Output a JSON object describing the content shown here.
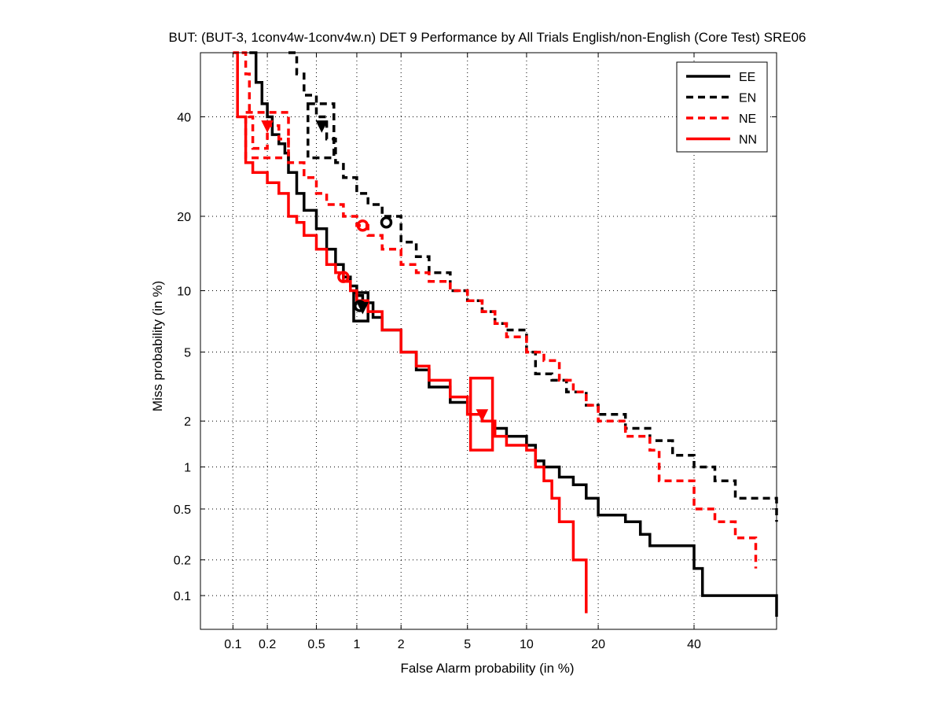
{
  "chart_data": {
    "type": "line",
    "title": "BUT: (BUT-3, 1conv4w-1conv4w.n) DET 9 Performance by All Trials English/non-English (Core Test) SRE06",
    "xlabel": "False Alarm probability (in %)",
    "ylabel": "Miss probability (in %)",
    "x_scale": "probit",
    "y_scale": "probit",
    "xlim": [
      0.05,
      60
    ],
    "ylim": [
      0.05,
      55
    ],
    "x_ticks": [
      0.1,
      0.2,
      0.5,
      1,
      2,
      5,
      10,
      20,
      40
    ],
    "x_tick_labels": [
      "0.1",
      "0.2",
      "0.5",
      "1",
      "2",
      "5",
      "10",
      "20",
      "40"
    ],
    "y_ticks": [
      0.1,
      0.2,
      0.5,
      1,
      2,
      5,
      10,
      20,
      40
    ],
    "y_tick_labels": [
      "0.1",
      "0.2",
      "0.5",
      "1",
      "2",
      "5",
      "10",
      "20",
      "40"
    ],
    "grid": true,
    "legend_position": "top-right",
    "series": [
      {
        "name": "EE",
        "color": "#000000",
        "dash": "solid",
        "x": [
          0.14,
          0.16,
          0.18,
          0.2,
          0.22,
          0.25,
          0.28,
          0.3,
          0.35,
          0.4,
          0.5,
          0.6,
          0.7,
          0.8,
          0.9,
          1.0,
          1.1,
          1.3,
          1.5,
          2.0,
          2.5,
          3.0,
          4.0,
          5.0,
          6.0,
          7.0,
          8.0,
          10.0,
          11.0,
          12.0,
          14.0,
          16.0,
          18.0,
          20.0,
          25.0,
          28.0,
          30.0,
          40.0,
          42.0,
          60.0
        ],
        "y": [
          55,
          48,
          43,
          40,
          36,
          34,
          32,
          28,
          24,
          21,
          18,
          15,
          13,
          11.5,
          10.5,
          9.5,
          8.8,
          7.5,
          6.5,
          5.0,
          4.0,
          3.2,
          2.6,
          2.2,
          2.0,
          1.8,
          1.6,
          1.4,
          1.1,
          1.0,
          0.85,
          0.75,
          0.6,
          0.45,
          0.4,
          0.32,
          0.26,
          0.17,
          0.1,
          0.065
        ]
      },
      {
        "name": "EN",
        "color": "#000000",
        "dash": "dashed",
        "x": [
          0.3,
          0.35,
          0.4,
          0.5,
          0.6,
          0.7,
          0.8,
          1.0,
          1.2,
          1.5,
          2.0,
          2.5,
          3.0,
          4.0,
          5.0,
          6.0,
          7.0,
          8.0,
          10.0,
          11.0,
          13.0,
          15.0,
          18.0,
          20.0,
          25.0,
          30.0,
          35.0,
          40.0,
          45.0,
          50.0,
          60.0
        ],
        "y": [
          55,
          50,
          45,
          40,
          35,
          30,
          27,
          24,
          22,
          20,
          16,
          14,
          12,
          10,
          9,
          8,
          7,
          6.5,
          5,
          3.8,
          3.5,
          3.0,
          2.5,
          2.2,
          1.8,
          1.5,
          1.2,
          1.0,
          0.8,
          0.6,
          0.4
        ]
      },
      {
        "name": "NE",
        "color": "#ff0000",
        "dash": "dashed",
        "x": [
          0.12,
          0.13,
          0.14,
          0.15,
          0.2,
          0.25,
          0.3,
          0.4,
          0.5,
          0.6,
          0.8,
          1.0,
          1.2,
          1.5,
          2.0,
          2.5,
          3.0,
          4.0,
          5.0,
          6.0,
          7.0,
          8.0,
          10.0,
          12.0,
          14.0,
          16.0,
          18.0,
          20.0,
          25.0,
          30.0,
          32.0,
          40.0,
          45.0,
          50.0,
          55.0
        ],
        "y": [
          55,
          50,
          40,
          33,
          38,
          35,
          30,
          27,
          24,
          22,
          20,
          18.5,
          17,
          15,
          13,
          12,
          11,
          10,
          9,
          8,
          7,
          6,
          5,
          4.5,
          3.5,
          3.0,
          2.5,
          2.0,
          1.6,
          1.3,
          0.8,
          0.5,
          0.4,
          0.3,
          0.17
        ]
      },
      {
        "name": "NN",
        "color": "#ff0000",
        "dash": "solid",
        "x": [
          0.1,
          0.11,
          0.13,
          0.15,
          0.2,
          0.25,
          0.3,
          0.35,
          0.4,
          0.5,
          0.6,
          0.7,
          0.8,
          0.9,
          1.0,
          1.2,
          1.5,
          2.0,
          2.5,
          3.0,
          4.0,
          5.0,
          6.0,
          7.0,
          8.0,
          10.0,
          11.0,
          12.0,
          13.0,
          14.0,
          16.0,
          18.0
        ],
        "y": [
          55,
          40,
          30,
          28,
          26,
          24,
          20,
          19,
          17,
          15,
          13,
          12,
          11,
          10,
          9,
          8,
          6.5,
          5,
          4.2,
          3.5,
          2.8,
          2.2,
          2.0,
          1.6,
          1.4,
          1.3,
          1.0,
          0.8,
          0.6,
          0.4,
          0.2,
          0.07
        ]
      }
    ],
    "markers": [
      {
        "series": "EE",
        "shape": "circle",
        "x": 1.05,
        "y": 8.5,
        "color": "#000000"
      },
      {
        "series": "EE",
        "shape": "triangle",
        "x": 1.1,
        "y": 8.4,
        "color": "#000000"
      },
      {
        "series": "EN",
        "shape": "circle",
        "x": 1.6,
        "y": 19,
        "color": "#000000"
      },
      {
        "series": "EN",
        "shape": "triangle",
        "x": 0.55,
        "y": 38,
        "color": "#000000"
      },
      {
        "series": "NE",
        "shape": "circle",
        "x": 1.1,
        "y": 18.5,
        "color": "#ff0000"
      },
      {
        "series": "NE",
        "shape": "triangle",
        "x": 0.2,
        "y": 38,
        "color": "#ff0000"
      },
      {
        "series": "NN",
        "shape": "circle",
        "x": 0.8,
        "y": 11.5,
        "color": "#ff0000"
      },
      {
        "series": "NN",
        "shape": "triangle",
        "x": 6.0,
        "y": 2.2,
        "color": "#ff0000"
      }
    ],
    "boxes": [
      {
        "series": "EE",
        "x0": 0.95,
        "x1": 1.2,
        "y0": 7.2,
        "y1": 9.8,
        "color": "#000000",
        "dash": "solid"
      },
      {
        "series": "EN",
        "x0": 0.43,
        "x1": 0.68,
        "y0": 31,
        "y1": 43,
        "color": "#000000",
        "dash": "dashed"
      },
      {
        "series": "NE",
        "x0": 0.13,
        "x1": 0.3,
        "y0": 31,
        "y1": 41,
        "color": "#ff0000",
        "dash": "dashed"
      },
      {
        "series": "NN",
        "x0": 5.2,
        "x1": 6.8,
        "y0": 1.3,
        "y1": 3.6,
        "color": "#ff0000",
        "dash": "solid"
      }
    ]
  }
}
